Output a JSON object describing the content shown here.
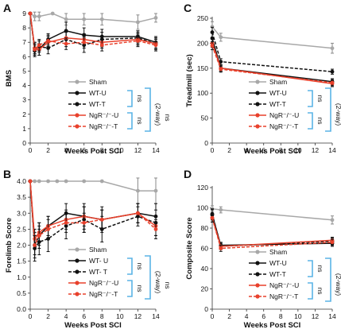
{
  "colors": {
    "sham": "#a8a8a8",
    "wt": "#111111",
    "ngr": "#e8412c",
    "bracket": "#5ab4e6"
  },
  "panels": [
    {
      "letter": "A",
      "chart_data": {
        "type": "line",
        "xlabel": "",
        "ylabel": "BMS",
        "xlim": [
          0,
          14
        ],
        "ylim": [
          0,
          9
        ],
        "xticks": [
          0,
          2,
          4,
          6,
          8,
          10,
          12,
          14
        ],
        "yticks": [
          0,
          1,
          2,
          3,
          4,
          5,
          6,
          7,
          8,
          9
        ],
        "series": [
          {
            "name": "Sham",
            "key": "sham",
            "dash": false,
            "x": [
              0,
              0.5,
              1,
              2.5,
              4,
              6,
              8,
              12,
              14
            ],
            "y": [
              9,
              8.8,
              8.8,
              9,
              8.6,
              8.6,
              8.6,
              8.4,
              8.7
            ],
            "err": [
              0,
              0.3,
              0.3,
              0,
              0.4,
              0.4,
              0.4,
              0.5,
              0.3
            ]
          },
          {
            "name": "WT-U",
            "key": "wt",
            "dash": false,
            "x": [
              0,
              0.5,
              1,
              2,
              4,
              6,
              8,
              12,
              14
            ],
            "y": [
              9,
              6.6,
              6.5,
              7.2,
              7.8,
              7.5,
              7.4,
              7.4,
              7.0
            ],
            "err": [
              0,
              0.4,
              0.4,
              0.4,
              0.6,
              0.5,
              0.5,
              0.4,
              0.4
            ]
          },
          {
            "name": "WT-T",
            "key": "wt",
            "dash": true,
            "x": [
              0,
              0.5,
              1,
              2,
              4,
              6,
              8,
              12,
              14
            ],
            "y": [
              9,
              6.4,
              6.7,
              6.6,
              7.2,
              6.8,
              7.2,
              7.3,
              6.9
            ],
            "err": [
              0,
              0.4,
              0.4,
              0.4,
              0.5,
              0.5,
              0.5,
              0.4,
              0.4
            ]
          },
          {
            "name": "NgR⁻/⁻-U",
            "key": "ngr",
            "dash": false,
            "x": [
              0,
              0.5,
              1,
              2,
              4,
              6,
              8,
              12,
              14
            ],
            "y": [
              9,
              6.6,
              6.5,
              7.0,
              7.3,
              7.2,
              7.0,
              7.2,
              6.9
            ],
            "err": [
              0,
              0.4,
              0.4,
              0.4,
              0.4,
              0.4,
              0.4,
              0.4,
              0.4
            ]
          },
          {
            "name": "NgR⁻/⁻-T",
            "key": "ngr",
            "dash": true,
            "x": [
              0,
              0.5,
              1,
              2,
              4,
              6,
              8,
              12,
              14
            ],
            "y": [
              9,
              6.5,
              6.8,
              7.1,
              6.9,
              7.0,
              6.8,
              7.1,
              6.8
            ],
            "err": [
              0,
              0.4,
              0.4,
              0.4,
              0.4,
              0.4,
              0.4,
              0.4,
              0.4
            ]
          }
        ]
      },
      "bracket_labels": [
        "ns",
        "ns",
        "(2-way)",
        "ns"
      ]
    },
    {
      "letter": "C",
      "chart_data": {
        "type": "line",
        "xlabel": "Weeks Post SCI",
        "ylabel": "Treadmill (sec)",
        "xlim": [
          0,
          14
        ],
        "ylim": [
          0,
          250
        ],
        "xticks": [
          0,
          2,
          4,
          6,
          8,
          10,
          12,
          14
        ],
        "yticks": [
          0,
          50,
          100,
          150,
          200,
          250
        ],
        "series": [
          {
            "name": "Sham",
            "key": "sham",
            "dash": false,
            "x": [
              0,
              1,
              14
            ],
            "y": [
              233,
              212,
              190
            ],
            "err": [
              10,
              8,
              10
            ]
          },
          {
            "name": "WT-U",
            "key": "wt",
            "dash": false,
            "x": [
              0,
              1,
              14
            ],
            "y": [
              210,
              150,
              123
            ],
            "err": [
              10,
              6,
              6
            ]
          },
          {
            "name": "WT-T",
            "key": "wt",
            "dash": true,
            "x": [
              0,
              1,
              14
            ],
            "y": [
              222,
              163,
              143
            ],
            "err": [
              10,
              6,
              5
            ]
          },
          {
            "name": "NgR⁻/⁻-U",
            "key": "ngr",
            "dash": false,
            "x": [
              0,
              1,
              14
            ],
            "y": [
              200,
              150,
              119
            ],
            "err": [
              8,
              6,
              6
            ]
          },
          {
            "name": "NgR⁻/⁻-T",
            "key": "ngr",
            "dash": true,
            "x": [
              0,
              1,
              14
            ],
            "y": [
              195,
              148,
              121
            ],
            "err": [
              8,
              6,
              6
            ]
          }
        ]
      },
      "bracket_labels": [
        "ns",
        "ns",
        "(2-way)",
        "ns"
      ]
    },
    {
      "letter": "B",
      "chart_data": {
        "type": "line",
        "xlabel": "Weeks Post SCI",
        "ylabel": "Forelimb Score",
        "xlim": [
          0,
          14
        ],
        "ylim": [
          0,
          4
        ],
        "xticks": [
          0,
          2,
          4,
          6,
          8,
          10,
          12,
          14
        ],
        "yticks": [
          "0.0",
          "0.5",
          "1.0",
          "1.5",
          "2.0",
          "2.5",
          "3.0",
          "3.5",
          "4.0"
        ],
        "series": [
          {
            "name": "Sham",
            "key": "sham",
            "dash": false,
            "x": [
              0,
              0.5,
              1,
              2,
              3,
              4,
              6,
              8,
              12,
              14
            ],
            "y": [
              4,
              4,
              4,
              4,
              4,
              4,
              4,
              4,
              3.7,
              3.7
            ],
            "err": [
              0,
              0,
              0,
              0,
              0,
              0,
              0,
              0,
              0.4,
              0.4
            ]
          },
          {
            "name": "WT- U",
            "key": "wt",
            "dash": false,
            "x": [
              0,
              0.5,
              1,
              2,
              4,
              6,
              8,
              12,
              14
            ],
            "y": [
              4,
              2.0,
              2.3,
              2.6,
              3.0,
              2.9,
              2.8,
              3.0,
              2.9
            ],
            "err": [
              0,
              0.4,
              0.4,
              0.3,
              0.3,
              0.4,
              0.4,
              0.3,
              0.4
            ]
          },
          {
            "name": "WT- T",
            "key": "wt",
            "dash": true,
            "x": [
              0,
              0.5,
              1,
              2,
              4,
              6,
              8,
              12,
              14
            ],
            "y": [
              4,
              1.9,
              2.1,
              2.2,
              2.6,
              2.8,
              2.5,
              2.9,
              2.7
            ],
            "err": [
              0,
              0.4,
              0.4,
              0.4,
              0.4,
              0.4,
              0.4,
              0.3,
              0.4
            ]
          },
          {
            "name": "NgR⁻/⁻-U",
            "key": "ngr",
            "dash": false,
            "x": [
              0,
              0.5,
              1,
              2,
              4,
              6,
              8,
              12,
              14
            ],
            "y": [
              4,
              2.2,
              2.4,
              2.6,
              2.8,
              2.9,
              2.8,
              3.0,
              2.6
            ],
            "err": [
              0,
              0.3,
              0.3,
              0.3,
              0.3,
              0.3,
              0.3,
              0.3,
              0.3
            ]
          },
          {
            "name": "NgR⁻/⁻-T",
            "key": "ngr",
            "dash": true,
            "x": [
              0,
              0.5,
              1,
              2,
              4,
              6,
              8,
              12,
              14
            ],
            "y": [
              4,
              2.0,
              2.3,
              2.5,
              2.7,
              2.7,
              2.8,
              3.0,
              2.5
            ],
            "err": [
              0,
              0.3,
              0.3,
              0.3,
              0.3,
              0.3,
              0.3,
              0.3,
              0.3
            ]
          }
        ]
      },
      "bracket_labels": [
        "ns",
        "ns",
        "(2-way)",
        "ns"
      ]
    },
    {
      "letter": "D",
      "chart_data": {
        "type": "line",
        "xlabel": "Weeks Post SCI",
        "ylabel": "Composite Score",
        "xlim": [
          0,
          14
        ],
        "ylim": [
          0,
          120
        ],
        "xticks": [
          0,
          2,
          4,
          6,
          8,
          10,
          12,
          14
        ],
        "yticks": [
          0,
          20,
          40,
          60,
          80,
          100,
          120
        ],
        "series": [
          {
            "name": "Sham",
            "key": "sham",
            "dash": false,
            "x": [
              0,
              1,
              14
            ],
            "y": [
              99,
              98,
              88
            ],
            "err": [
              3,
              3,
              4
            ]
          },
          {
            "name": "WT-U",
            "key": "wt",
            "dash": false,
            "x": [
              0,
              1,
              14
            ],
            "y": [
              93,
              63,
              65
            ],
            "err": [
              5,
              3,
              3
            ]
          },
          {
            "name": "WT-T",
            "key": "wt",
            "dash": true,
            "x": [
              0,
              1,
              14
            ],
            "y": [
              94,
              62,
              67
            ],
            "err": [
              5,
              3,
              3
            ]
          },
          {
            "name": "NgR⁻/⁻-U",
            "key": "ngr",
            "dash": false,
            "x": [
              0,
              1,
              14
            ],
            "y": [
              90,
              62,
              68
            ],
            "err": [
              4,
              3,
              3
            ]
          },
          {
            "name": "NgR⁻/⁻-T",
            "key": "ngr",
            "dash": true,
            "x": [
              0,
              1,
              14
            ],
            "y": [
              90,
              60,
              66
            ],
            "err": [
              4,
              3,
              3
            ]
          }
        ]
      },
      "bracket_labels": [
        "ns",
        "ns",
        "(2-way)",
        "ns"
      ]
    }
  ]
}
